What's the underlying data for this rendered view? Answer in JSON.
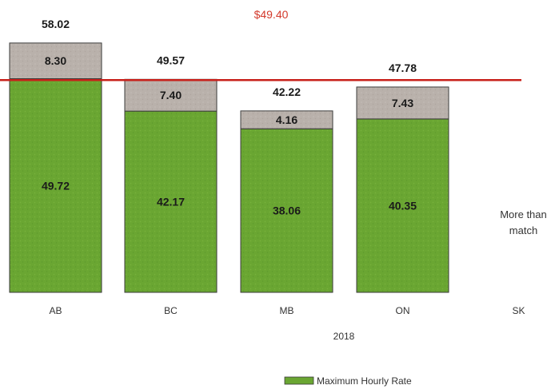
{
  "chart_data": {
    "type": "bar",
    "stacked": true,
    "categories": [
      "AB",
      "BC",
      "MB",
      "ON",
      "SK"
    ],
    "series": [
      {
        "name": "Maximum Hourly Rate",
        "color": "#6aa632",
        "values": [
          49.72,
          42.17,
          38.06,
          40.35,
          null
        ]
      },
      {
        "color": "#b9b1ab",
        "values": [
          8.3,
          7.4,
          4.16,
          7.43,
          null
        ]
      }
    ],
    "totals": [
      58.02,
      49.57,
      42.22,
      47.78,
      null
    ],
    "total_labels": [
      "58.02",
      "49.57",
      "42.22",
      "47.78",
      ""
    ],
    "segment_labels": [
      [
        "49.72",
        "42.17",
        "38.06",
        "40.35",
        ""
      ],
      [
        "8.30",
        "7.40",
        "4.16",
        "7.43",
        ""
      ]
    ],
    "reference_line": {
      "value": 49.4,
      "label": "$49.40",
      "color": "#c8201a"
    },
    "x_group_label": "2018",
    "annotation": {
      "category": "SK",
      "lines": [
        "More than",
        "match"
      ]
    },
    "legend": {
      "entries": [
        "Maximum Hourly Rate"
      ],
      "position": "bottom"
    },
    "ylim": [
      0,
      60
    ],
    "grid": false,
    "title": "",
    "xlabel": "",
    "ylabel": ""
  }
}
